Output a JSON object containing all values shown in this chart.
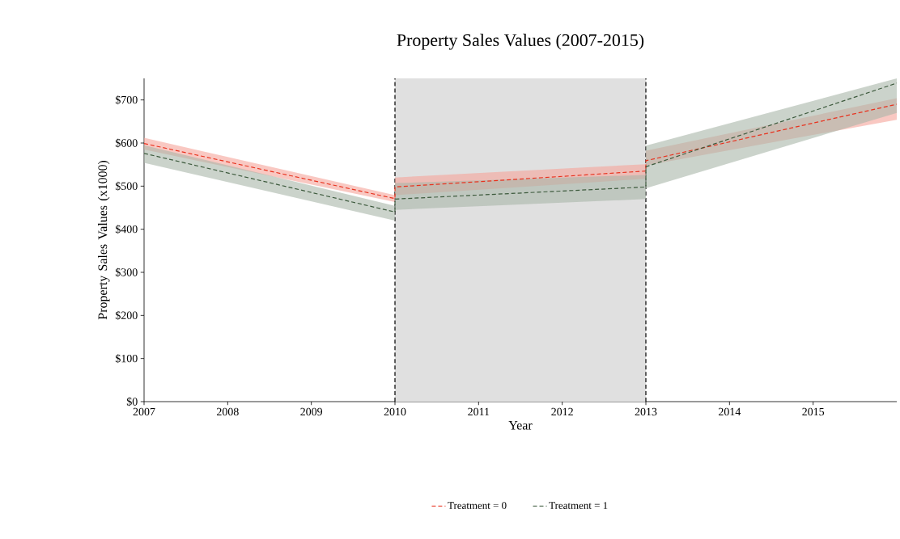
{
  "chart_data": {
    "type": "line",
    "title": "Property Sales Values (2007-2015)",
    "xlabel": "Year",
    "ylabel": "Property Sales Values (x1000)",
    "xlim": [
      2007,
      2016
    ],
    "xticks": [
      2007,
      2008,
      2009,
      2010,
      2011,
      2012,
      2013,
      2014,
      2015
    ],
    "ylim": [
      0,
      750
    ],
    "yticks": [
      {
        "value": 0,
        "label": "$0"
      },
      {
        "value": 100,
        "label": "$100"
      },
      {
        "value": 200,
        "label": "$200"
      },
      {
        "value": 300,
        "label": "$300"
      },
      {
        "value": 400,
        "label": "$400"
      },
      {
        "value": 500,
        "label": "$500"
      },
      {
        "value": 600,
        "label": "$600"
      },
      {
        "value": 700,
        "label": "$700"
      }
    ],
    "line_style": "dashed",
    "legend": "bottom",
    "bands": [
      {
        "axis": "x",
        "from": 2010,
        "to": 2013,
        "color": "#e0e0e0"
      }
    ],
    "ref_lines": [
      {
        "axis": "x",
        "value": 2010,
        "color": "#000000",
        "line_style": "dashed"
      },
      {
        "axis": "x",
        "value": 2013,
        "color": "#000000",
        "line_style": "dashed"
      }
    ],
    "series": [
      {
        "name": "Treatment = 0",
        "color": "#e8321e",
        "x": [
          2007,
          2010,
          2010,
          2013,
          2013,
          2016
        ],
        "values": [
          599,
          471,
          498,
          535,
          559,
          690
        ],
        "lower": [
          585,
          463,
          479,
          517,
          548,
          654
        ],
        "upper": [
          612,
          479,
          520,
          551,
          582,
          704
        ]
      },
      {
        "name": "Treatment = 1",
        "color": "#3d5a3d",
        "x": [
          2007,
          2010,
          2010,
          2013,
          2013,
          2016
        ],
        "values": [
          576,
          440,
          470,
          498,
          545,
          739
        ],
        "lower": [
          554,
          420,
          445,
          470,
          495,
          670
        ],
        "upper": [
          595,
          454,
          507,
          526,
          594,
          750
        ]
      }
    ]
  }
}
